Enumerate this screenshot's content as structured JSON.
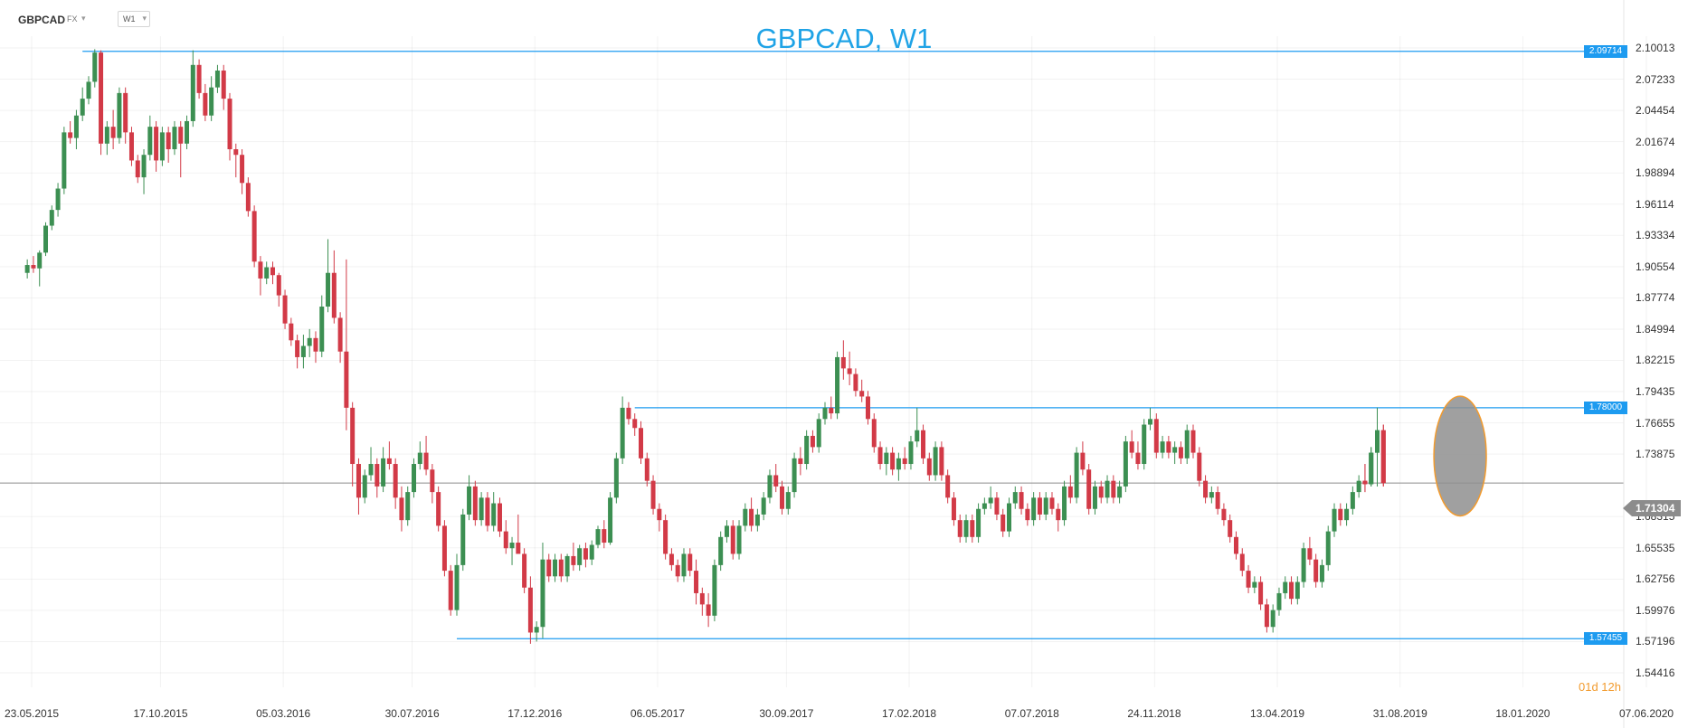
{
  "toolbar": {
    "symbol": "GBPCAD",
    "market": "FX",
    "timeframe": "W1"
  },
  "colors": {
    "up": "#3c8f52",
    "down": "#d23a47",
    "hline": "#1d9bf0",
    "title": "#1fa3e6",
    "current_line": "#8c8c8c",
    "highlight_fill": "#8f8f8f",
    "highlight_stroke": "#f29b2e",
    "countdown": "#f29b2e"
  },
  "countdown": {
    "text": "01d 12h"
  },
  "chart_data": {
    "type": "candlestick",
    "title": "GBPCAD, W1",
    "price_ticks": [
      "2.10013",
      "2.07233",
      "2.04454",
      "2.01674",
      "1.98894",
      "1.96114",
      "1.93334",
      "1.90554",
      "1.87774",
      "1.84994",
      "1.82215",
      "1.79435",
      "1.76655",
      "1.73875",
      "1.68315",
      "1.65535",
      "1.62756",
      "1.59976",
      "1.57196",
      "1.54416"
    ],
    "date_ticks": [
      "23.05.2015",
      "17.10.2015",
      "05.03.2016",
      "30.07.2016",
      "17.12.2016",
      "06.05.2017",
      "30.09.2017",
      "17.02.2018",
      "07.07.2018",
      "24.11.2018",
      "13.04.2019",
      "31.08.2019",
      "18.01.2020",
      "07.06.2020"
    ],
    "current_price": "1.71304",
    "horizontal_lines": [
      {
        "label": "2.09714",
        "value": 2.09714,
        "start": "2015-07-20"
      },
      {
        "label": "1.78000",
        "value": 1.78,
        "start": "2017-04-10"
      },
      {
        "label": "1.57455",
        "value": 1.57455,
        "start": "2016-09-19"
      }
    ],
    "highlight": {
      "label": "highlighted-last-candles",
      "start": "2019-10-21",
      "end": "2019-11-25"
    },
    "ohlc_weekly_from": "2015-05-18",
    "ohlc": [
      [
        1.9,
        1.912,
        1.895,
        1.907
      ],
      [
        1.907,
        1.915,
        1.9,
        1.904
      ],
      [
        1.904,
        1.92,
        1.888,
        1.918
      ],
      [
        1.918,
        1.945,
        1.915,
        1.942
      ],
      [
        1.942,
        1.96,
        1.938,
        1.956
      ],
      [
        1.956,
        1.98,
        1.95,
        1.975
      ],
      [
        1.975,
        2.03,
        1.97,
        2.025
      ],
      [
        2.025,
        2.035,
        2.015,
        2.02
      ],
      [
        2.02,
        2.045,
        2.01,
        2.04
      ],
      [
        2.04,
        2.065,
        2.035,
        2.055
      ],
      [
        2.055,
        2.075,
        2.05,
        2.07
      ],
      [
        2.07,
        2.099,
        2.065,
        2.096
      ],
      [
        2.096,
        2.098,
        2.005,
        2.015
      ],
      [
        2.015,
        2.035,
        2.005,
        2.03
      ],
      [
        2.03,
        2.045,
        2.01,
        2.02
      ],
      [
        2.02,
        2.065,
        2.015,
        2.06
      ],
      [
        2.06,
        2.065,
        2.015,
        2.025
      ],
      [
        2.025,
        2.03,
        1.995,
        2.0
      ],
      [
        2.0,
        2.005,
        1.98,
        1.985
      ],
      [
        1.985,
        2.01,
        1.97,
        2.005
      ],
      [
        2.005,
        2.04,
        2.0,
        2.03
      ],
      [
        2.03,
        2.035,
        1.99,
        2.0
      ],
      [
        2.0,
        2.03,
        1.995,
        2.025
      ],
      [
        2.025,
        2.03,
        1.998,
        2.01
      ],
      [
        2.01,
        2.035,
        2.005,
        2.03
      ],
      [
        2.03,
        2.035,
        1.985,
        2.015
      ],
      [
        2.015,
        2.04,
        2.01,
        2.035
      ],
      [
        2.035,
        2.098,
        2.03,
        2.085
      ],
      [
        2.085,
        2.09,
        2.055,
        2.06
      ],
      [
        2.06,
        2.068,
        2.035,
        2.04
      ],
      [
        2.04,
        2.075,
        2.035,
        2.065
      ],
      [
        2.065,
        2.085,
        2.06,
        2.08
      ],
      [
        2.08,
        2.085,
        2.045,
        2.055
      ],
      [
        2.055,
        2.06,
        2.0,
        2.01
      ],
      [
        2.01,
        2.015,
        1.985,
        2.005
      ],
      [
        2.005,
        2.01,
        1.97,
        1.98
      ],
      [
        1.98,
        1.985,
        1.95,
        1.955
      ],
      [
        1.955,
        1.96,
        1.905,
        1.91
      ],
      [
        1.91,
        1.915,
        1.88,
        1.895
      ],
      [
        1.895,
        1.91,
        1.89,
        1.905
      ],
      [
        1.905,
        1.91,
        1.89,
        1.898
      ],
      [
        1.898,
        1.9,
        1.87,
        1.88
      ],
      [
        1.88,
        1.885,
        1.85,
        1.855
      ],
      [
        1.855,
        1.86,
        1.835,
        1.84
      ],
      [
        1.84,
        1.845,
        1.815,
        1.825
      ],
      [
        1.825,
        1.845,
        1.815,
        1.835
      ],
      [
        1.835,
        1.85,
        1.825,
        1.842
      ],
      [
        1.842,
        1.848,
        1.82,
        1.83
      ],
      [
        1.83,
        1.88,
        1.825,
        1.87
      ],
      [
        1.87,
        1.93,
        1.865,
        1.9
      ],
      [
        1.9,
        1.92,
        1.855,
        1.86
      ],
      [
        1.86,
        1.865,
        1.82,
        1.83
      ],
      [
        1.83,
        1.912,
        1.76,
        1.78
      ],
      [
        1.78,
        1.785,
        1.71,
        1.73
      ],
      [
        1.73,
        1.735,
        1.685,
        1.7
      ],
      [
        1.7,
        1.725,
        1.695,
        1.72
      ],
      [
        1.72,
        1.745,
        1.715,
        1.73
      ],
      [
        1.73,
        1.735,
        1.7,
        1.71
      ],
      [
        1.71,
        1.745,
        1.705,
        1.735
      ],
      [
        1.735,
        1.75,
        1.725,
        1.73
      ],
      [
        1.73,
        1.735,
        1.69,
        1.7
      ],
      [
        1.7,
        1.71,
        1.67,
        1.68
      ],
      [
        1.68,
        1.71,
        1.675,
        1.705
      ],
      [
        1.705,
        1.735,
        1.7,
        1.73
      ],
      [
        1.73,
        1.75,
        1.725,
        1.74
      ],
      [
        1.74,
        1.755,
        1.72,
        1.725
      ],
      [
        1.725,
        1.73,
        1.695,
        1.705
      ],
      [
        1.705,
        1.71,
        1.67,
        1.675
      ],
      [
        1.675,
        1.68,
        1.63,
        1.635
      ],
      [
        1.635,
        1.64,
        1.595,
        1.6
      ],
      [
        1.6,
        1.65,
        1.595,
        1.64
      ],
      [
        1.64,
        1.69,
        1.635,
        1.685
      ],
      [
        1.685,
        1.72,
        1.68,
        1.71
      ],
      [
        1.71,
        1.715,
        1.675,
        1.68
      ],
      [
        1.68,
        1.705,
        1.675,
        1.7
      ],
      [
        1.7,
        1.705,
        1.67,
        1.675
      ],
      [
        1.675,
        1.705,
        1.67,
        1.695
      ],
      [
        1.695,
        1.7,
        1.665,
        1.67
      ],
      [
        1.67,
        1.68,
        1.65,
        1.655
      ],
      [
        1.655,
        1.665,
        1.64,
        1.66
      ],
      [
        1.66,
        1.685,
        1.655,
        1.65
      ],
      [
        1.65,
        1.655,
        1.615,
        1.62
      ],
      [
        1.62,
        1.63,
        1.57,
        1.58
      ],
      [
        1.58,
        1.59,
        1.572,
        1.585
      ],
      [
        1.585,
        1.66,
        1.575,
        1.645
      ],
      [
        1.645,
        1.65,
        1.625,
        1.63
      ],
      [
        1.63,
        1.65,
        1.625,
        1.645
      ],
      [
        1.645,
        1.65,
        1.625,
        1.63
      ],
      [
        1.63,
        1.65,
        1.625,
        1.648
      ],
      [
        1.648,
        1.66,
        1.635,
        1.64
      ],
      [
        1.64,
        1.658,
        1.635,
        1.655
      ],
      [
        1.655,
        1.66,
        1.638,
        1.645
      ],
      [
        1.645,
        1.662,
        1.64,
        1.658
      ],
      [
        1.658,
        1.675,
        1.655,
        1.672
      ],
      [
        1.672,
        1.68,
        1.655,
        1.66
      ],
      [
        1.66,
        1.705,
        1.658,
        1.7
      ],
      [
        1.7,
        1.74,
        1.695,
        1.735
      ],
      [
        1.735,
        1.79,
        1.73,
        1.78
      ],
      [
        1.78,
        1.785,
        1.765,
        1.77
      ],
      [
        1.77,
        1.775,
        1.755,
        1.762
      ],
      [
        1.762,
        1.768,
        1.73,
        1.735
      ],
      [
        1.735,
        1.74,
        1.71,
        1.715
      ],
      [
        1.715,
        1.72,
        1.685,
        1.69
      ],
      [
        1.69,
        1.695,
        1.67,
        1.68
      ],
      [
        1.68,
        1.685,
        1.645,
        1.65
      ],
      [
        1.65,
        1.655,
        1.635,
        1.64
      ],
      [
        1.64,
        1.645,
        1.625,
        1.63
      ],
      [
        1.63,
        1.655,
        1.625,
        1.65
      ],
      [
        1.65,
        1.655,
        1.63,
        1.635
      ],
      [
        1.635,
        1.645,
        1.605,
        1.615
      ],
      [
        1.615,
        1.62,
        1.595,
        1.605
      ],
      [
        1.605,
        1.615,
        1.585,
        1.595
      ],
      [
        1.595,
        1.645,
        1.59,
        1.64
      ],
      [
        1.64,
        1.67,
        1.635,
        1.665
      ],
      [
        1.665,
        1.68,
        1.66,
        1.675
      ],
      [
        1.675,
        1.68,
        1.645,
        1.65
      ],
      [
        1.65,
        1.68,
        1.645,
        1.675
      ],
      [
        1.675,
        1.695,
        1.67,
        1.69
      ],
      [
        1.69,
        1.7,
        1.67,
        1.675
      ],
      [
        1.675,
        1.69,
        1.67,
        1.685
      ],
      [
        1.685,
        1.705,
        1.68,
        1.7
      ],
      [
        1.7,
        1.725,
        1.695,
        1.72
      ],
      [
        1.72,
        1.73,
        1.705,
        1.71
      ],
      [
        1.71,
        1.715,
        1.685,
        1.69
      ],
      [
        1.69,
        1.71,
        1.685,
        1.705
      ],
      [
        1.705,
        1.74,
        1.7,
        1.735
      ],
      [
        1.735,
        1.745,
        1.72,
        1.73
      ],
      [
        1.73,
        1.76,
        1.725,
        1.755
      ],
      [
        1.755,
        1.76,
        1.74,
        1.745
      ],
      [
        1.745,
        1.775,
        1.74,
        1.77
      ],
      [
        1.77,
        1.785,
        1.765,
        1.78
      ],
      [
        1.78,
        1.79,
        1.77,
        1.775
      ],
      [
        1.775,
        1.83,
        1.77,
        1.825
      ],
      [
        1.825,
        1.84,
        1.805,
        1.815
      ],
      [
        1.815,
        1.83,
        1.8,
        1.81
      ],
      [
        1.81,
        1.815,
        1.79,
        1.795
      ],
      [
        1.795,
        1.805,
        1.785,
        1.79
      ],
      [
        1.79,
        1.795,
        1.765,
        1.77
      ],
      [
        1.77,
        1.775,
        1.74,
        1.745
      ],
      [
        1.745,
        1.75,
        1.725,
        1.73
      ],
      [
        1.73,
        1.745,
        1.72,
        1.74
      ],
      [
        1.74,
        1.745,
        1.72,
        1.725
      ],
      [
        1.725,
        1.74,
        1.715,
        1.735
      ],
      [
        1.735,
        1.745,
        1.725,
        1.73
      ],
      [
        1.73,
        1.755,
        1.725,
        1.75
      ],
      [
        1.75,
        1.78,
        1.745,
        1.76
      ],
      [
        1.76,
        1.765,
        1.73,
        1.735
      ],
      [
        1.735,
        1.74,
        1.715,
        1.72
      ],
      [
        1.72,
        1.75,
        1.715,
        1.745
      ],
      [
        1.745,
        1.75,
        1.715,
        1.72
      ],
      [
        1.72,
        1.725,
        1.695,
        1.7
      ],
      [
        1.7,
        1.705,
        1.675,
        1.68
      ],
      [
        1.68,
        1.685,
        1.66,
        1.665
      ],
      [
        1.665,
        1.685,
        1.66,
        1.68
      ],
      [
        1.68,
        1.685,
        1.66,
        1.665
      ],
      [
        1.665,
        1.695,
        1.66,
        1.69
      ],
      [
        1.69,
        1.7,
        1.685,
        1.695
      ],
      [
        1.695,
        1.71,
        1.69,
        1.7
      ],
      [
        1.7,
        1.705,
        1.68,
        1.685
      ],
      [
        1.685,
        1.69,
        1.665,
        1.67
      ],
      [
        1.67,
        1.7,
        1.665,
        1.695
      ],
      [
        1.695,
        1.71,
        1.69,
        1.705
      ],
      [
        1.705,
        1.71,
        1.685,
        1.69
      ],
      [
        1.69,
        1.695,
        1.675,
        1.68
      ],
      [
        1.68,
        1.705,
        1.675,
        1.7
      ],
      [
        1.7,
        1.705,
        1.68,
        1.685
      ],
      [
        1.685,
        1.705,
        1.68,
        1.7
      ],
      [
        1.7,
        1.705,
        1.685,
        1.69
      ],
      [
        1.69,
        1.695,
        1.67,
        1.68
      ],
      [
        1.68,
        1.715,
        1.675,
        1.71
      ],
      [
        1.71,
        1.72,
        1.695,
        1.7
      ],
      [
        1.7,
        1.745,
        1.695,
        1.74
      ],
      [
        1.74,
        1.75,
        1.72,
        1.725
      ],
      [
        1.725,
        1.73,
        1.685,
        1.69
      ],
      [
        1.69,
        1.715,
        1.685,
        1.71
      ],
      [
        1.71,
        1.715,
        1.695,
        1.7
      ],
      [
        1.7,
        1.72,
        1.695,
        1.715
      ],
      [
        1.715,
        1.72,
        1.695,
        1.7
      ],
      [
        1.7,
        1.715,
        1.695,
        1.71
      ],
      [
        1.71,
        1.755,
        1.705,
        1.75
      ],
      [
        1.75,
        1.76,
        1.735,
        1.74
      ],
      [
        1.74,
        1.75,
        1.725,
        1.73
      ],
      [
        1.73,
        1.77,
        1.725,
        1.765
      ],
      [
        1.765,
        1.78,
        1.76,
        1.77
      ],
      [
        1.77,
        1.775,
        1.735,
        1.74
      ],
      [
        1.74,
        1.755,
        1.735,
        1.75
      ],
      [
        1.75,
        1.755,
        1.735,
        1.74
      ],
      [
        1.74,
        1.75,
        1.73,
        1.745
      ],
      [
        1.745,
        1.75,
        1.73,
        1.735
      ],
      [
        1.735,
        1.765,
        1.73,
        1.76
      ],
      [
        1.76,
        1.765,
        1.735,
        1.74
      ],
      [
        1.74,
        1.745,
        1.71,
        1.715
      ],
      [
        1.715,
        1.72,
        1.695,
        1.7
      ],
      [
        1.7,
        1.71,
        1.695,
        1.705
      ],
      [
        1.705,
        1.71,
        1.685,
        1.69
      ],
      [
        1.69,
        1.695,
        1.675,
        1.68
      ],
      [
        1.68,
        1.685,
        1.66,
        1.665
      ],
      [
        1.665,
        1.67,
        1.645,
        1.65
      ],
      [
        1.65,
        1.655,
        1.63,
        1.635
      ],
      [
        1.635,
        1.64,
        1.615,
        1.62
      ],
      [
        1.62,
        1.63,
        1.615,
        1.625
      ],
      [
        1.625,
        1.63,
        1.6,
        1.605
      ],
      [
        1.605,
        1.61,
        1.58,
        1.585
      ],
      [
        1.585,
        1.605,
        1.58,
        1.6
      ],
      [
        1.6,
        1.62,
        1.595,
        1.615
      ],
      [
        1.615,
        1.63,
        1.61,
        1.625
      ],
      [
        1.625,
        1.63,
        1.605,
        1.61
      ],
      [
        1.61,
        1.63,
        1.605,
        1.625
      ],
      [
        1.625,
        1.66,
        1.62,
        1.655
      ],
      [
        1.655,
        1.665,
        1.64,
        1.645
      ],
      [
        1.645,
        1.65,
        1.62,
        1.625
      ],
      [
        1.625,
        1.645,
        1.62,
        1.64
      ],
      [
        1.64,
        1.675,
        1.635,
        1.67
      ],
      [
        1.67,
        1.695,
        1.665,
        1.69
      ],
      [
        1.69,
        1.695,
        1.675,
        1.68
      ],
      [
        1.68,
        1.695,
        1.675,
        1.69
      ],
      [
        1.69,
        1.71,
        1.685,
        1.705
      ],
      [
        1.705,
        1.72,
        1.7,
        1.715
      ],
      [
        1.715,
        1.73,
        1.705,
        1.712
      ],
      [
        1.712,
        1.745,
        1.71,
        1.74
      ],
      [
        1.74,
        1.78,
        1.71,
        1.76
      ],
      [
        1.76,
        1.765,
        1.71,
        1.713
      ]
    ]
  }
}
